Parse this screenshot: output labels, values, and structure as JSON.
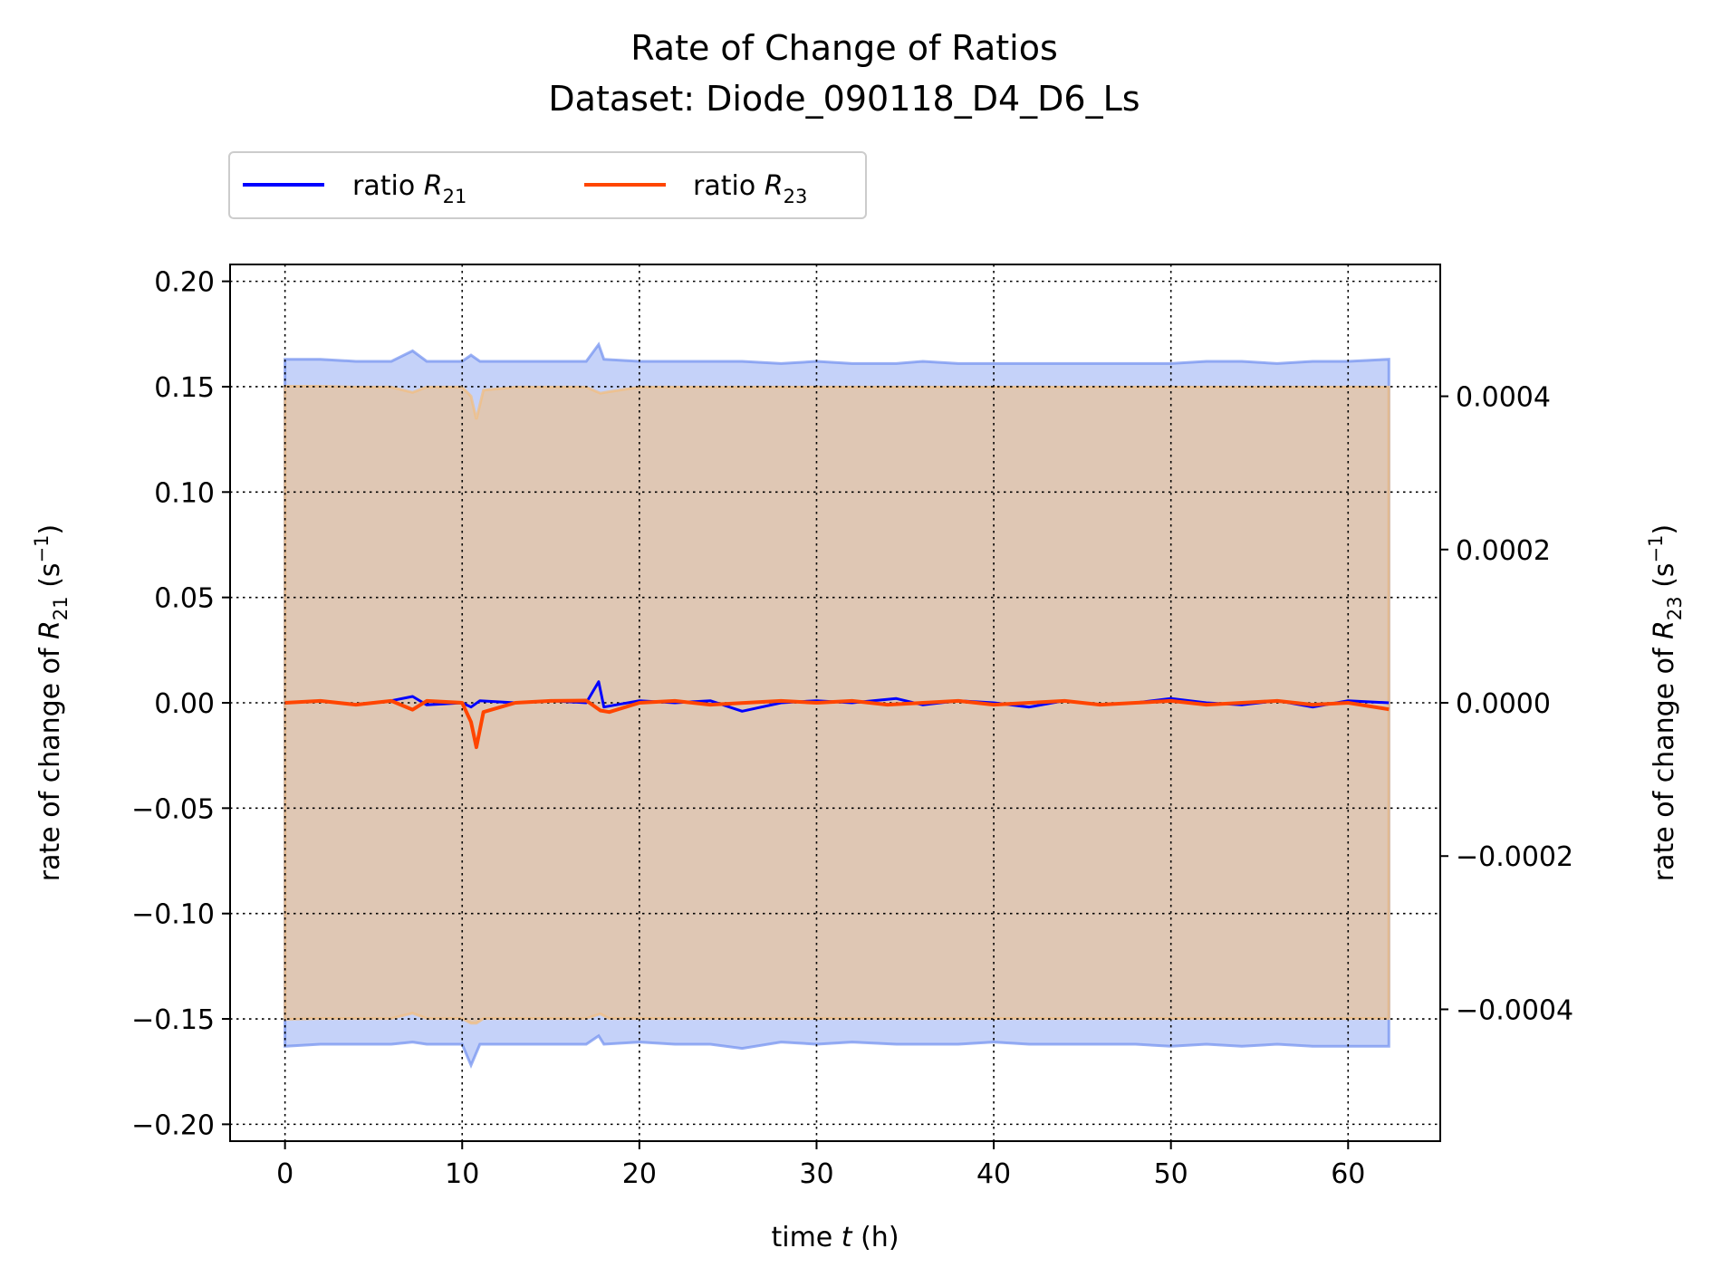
{
  "chart_data": {
    "type": "line",
    "title": "Rate of Change of Ratios",
    "subtitle": "Dataset: Diode_090118_D4_D6_Ls",
    "xlabel": {
      "pre": "time ",
      "var": "t",
      "post": " (h)"
    },
    "ylabel_left": {
      "pre": "rate of change of ",
      "var": "R",
      "sub": "21",
      "post": " (s",
      "sup": "−1",
      "close": ")"
    },
    "ylabel_right": {
      "pre": "rate of change of ",
      "var": "R",
      "sub": "23",
      "post": " (s",
      "sup": "−1",
      "close": ")"
    },
    "xlim": [
      -3.1,
      65.2
    ],
    "ylim_left": [
      -0.208,
      0.208
    ],
    "ylim_right": [
      -0.000572,
      0.000572
    ],
    "x_ticks": [
      0,
      10,
      20,
      30,
      40,
      50,
      60
    ],
    "x_tick_labels": [
      "0",
      "10",
      "20",
      "30",
      "40",
      "50",
      "60"
    ],
    "y_left_ticks": [
      0.2,
      0.15,
      0.1,
      0.05,
      0.0,
      -0.05,
      -0.1,
      -0.15,
      -0.2
    ],
    "y_left_tick_labels": [
      "0.20",
      "0.15",
      "0.10",
      "0.05",
      "0.00",
      "−0.05",
      "−0.10",
      "−0.15",
      "−0.20"
    ],
    "y_right_ticks": [
      0.0004,
      0.0002,
      0.0,
      -0.0002,
      -0.0004
    ],
    "y_right_tick_labels": [
      "0.0004",
      "0.0002",
      "0.0000",
      "−0.0002",
      "−0.0004"
    ],
    "grid": true,
    "legend_placement": "above-left, outside plot",
    "series": [
      {
        "name": "ratio R21",
        "legend": {
          "pre": "ratio ",
          "var": "R",
          "sub": "21"
        },
        "axis": "left",
        "color": "#0000ff",
        "band_color": "#6f8ff0",
        "x": [
          0,
          2,
          4,
          6,
          7.2,
          8,
          10,
          10.5,
          11,
          13,
          15,
          17,
          17.7,
          18,
          20,
          22,
          24,
          25.8,
          28,
          30,
          32,
          34.5,
          36,
          38,
          40,
          42,
          44,
          46,
          48,
          50,
          52,
          54,
          56,
          58,
          60,
          62.3
        ],
        "values": [
          0.0,
          0.001,
          -0.001,
          0.001,
          0.003,
          -0.001,
          0.0,
          -0.002,
          0.001,
          0.0,
          0.001,
          0.0,
          0.01,
          -0.002,
          0.001,
          0.0,
          0.001,
          -0.004,
          0.0,
          0.001,
          0.0,
          0.002,
          -0.001,
          0.001,
          0.0,
          -0.002,
          0.001,
          -0.001,
          0.0,
          0.002,
          0.0,
          -0.001,
          0.001,
          -0.002,
          0.001,
          0.0
        ],
        "band_upper": [
          0.163,
          0.163,
          0.162,
          0.162,
          0.167,
          0.162,
          0.162,
          0.165,
          0.162,
          0.162,
          0.162,
          0.162,
          0.17,
          0.163,
          0.162,
          0.162,
          0.162,
          0.162,
          0.161,
          0.162,
          0.161,
          0.161,
          0.162,
          0.161,
          0.161,
          0.161,
          0.161,
          0.161,
          0.161,
          0.161,
          0.162,
          0.162,
          0.161,
          0.162,
          0.162,
          0.163
        ],
        "band_lower": [
          -0.163,
          -0.162,
          -0.162,
          -0.162,
          -0.161,
          -0.162,
          -0.162,
          -0.172,
          -0.162,
          -0.162,
          -0.162,
          -0.162,
          -0.158,
          -0.162,
          -0.161,
          -0.162,
          -0.162,
          -0.164,
          -0.161,
          -0.162,
          -0.161,
          -0.162,
          -0.162,
          -0.162,
          -0.161,
          -0.162,
          -0.162,
          -0.162,
          -0.162,
          -0.163,
          -0.162,
          -0.163,
          -0.162,
          -0.163,
          -0.163,
          -0.163
        ]
      },
      {
        "name": "ratio R23",
        "legend": {
          "pre": "ratio ",
          "var": "R",
          "sub": "23"
        },
        "axis": "right",
        "color": "#ff4500",
        "band_color": "#f4be7c",
        "x": [
          0,
          2,
          4,
          6,
          7.2,
          8,
          10,
          10.5,
          10.8,
          11.2,
          13,
          15,
          17,
          17.8,
          18.3,
          20,
          22,
          24,
          26,
          28,
          30,
          32,
          34,
          36,
          38,
          40,
          42,
          44,
          46,
          48,
          50,
          52,
          54,
          56,
          58,
          60,
          62.3
        ],
        "values": [
          0.0,
          2.5e-06,
          -2.5e-06,
          2.5e-06,
          -9e-06,
          2.5e-06,
          0.0,
          -2.5e-05,
          -5.8e-05,
          -1.2e-05,
          0.0,
          2.5e-06,
          3e-06,
          -1e-05,
          -1.2e-05,
          0.0,
          2.5e-06,
          -2.5e-06,
          0.0,
          2.5e-06,
          0.0,
          2.5e-06,
          -2.5e-06,
          0.0,
          2.5e-06,
          -2.5e-06,
          0.0,
          2.5e-06,
          -2.5e-06,
          0.0,
          2.5e-06,
          -2.5e-06,
          0.0,
          2.5e-06,
          -2.5e-06,
          0.0,
          -8.5e-06
        ],
        "band_upper": [
          0.000413,
          0.000413,
          0.000412,
          0.000412,
          0.000405,
          0.000412,
          0.000412,
          0.0004,
          0.00037,
          0.000408,
          0.000412,
          0.000412,
          0.000412,
          0.000404,
          0.000406,
          0.000412,
          0.000412,
          0.000412,
          0.000412,
          0.000412,
          0.000412,
          0.000412,
          0.000412,
          0.000412,
          0.000412,
          0.000412,
          0.000412,
          0.000412,
          0.000412,
          0.000412,
          0.000412,
          0.000412,
          0.000412,
          0.000412,
          0.000412,
          0.000412,
          0.000412
        ],
        "band_lower": [
          -0.000413,
          -0.000412,
          -0.000412,
          -0.000412,
          -0.000405,
          -0.000412,
          -0.000412,
          -0.000418,
          -0.000418,
          -0.000412,
          -0.000412,
          -0.000412,
          -0.000412,
          -0.000406,
          -0.000412,
          -0.000412,
          -0.000412,
          -0.000412,
          -0.000412,
          -0.000412,
          -0.000412,
          -0.000412,
          -0.000412,
          -0.000412,
          -0.000412,
          -0.000412,
          -0.000412,
          -0.000412,
          -0.000412,
          -0.000412,
          -0.000412,
          -0.000412,
          -0.000412,
          -0.000412,
          -0.000412,
          -0.000412,
          -0.000412
        ]
      }
    ]
  }
}
